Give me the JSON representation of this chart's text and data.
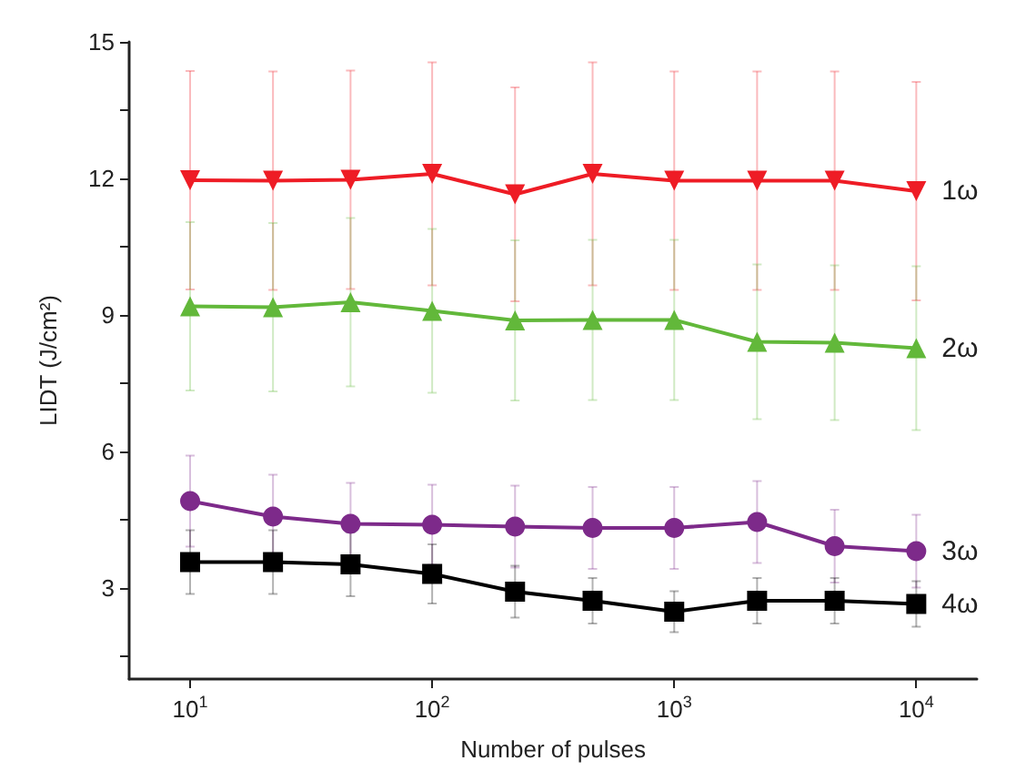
{
  "chart_data": {
    "type": "line",
    "xlabel": "Number of pulses",
    "ylabel": "LIDT (J/cm²)",
    "log": "x",
    "x": [
      10,
      22,
      46,
      100,
      220,
      460,
      1000,
      2200,
      4600,
      10000
    ],
    "xlim": [
      5.6,
      17800
    ],
    "xticks": [
      {
        "value": 10,
        "label": "10$^{1}$"
      },
      {
        "value": 100,
        "label": "10$^{2}$"
      },
      {
        "value": 1000,
        "label": "10$^{3}$"
      },
      {
        "value": 10000,
        "label": "10$^{4}$"
      }
    ],
    "ylim": [
      1,
      15
    ],
    "yticks": [
      {
        "value": 1.5,
        "label": null
      },
      3,
      {
        "value": 4.5,
        "label": null
      },
      6,
      {
        "value": 7.5,
        "label": null
      },
      9,
      {
        "value": 10.5,
        "label": null
      },
      12,
      {
        "value": 13.5,
        "label": null
      },
      15
    ],
    "grid": false,
    "legend": false,
    "line_style": "solid",
    "series": [
      {
        "name": "1ω",
        "color": "#ee1c25",
        "marker": "triangle-down",
        "values": [
          11.96,
          11.95,
          11.97,
          12.1,
          11.65,
          12.1,
          11.95,
          11.95,
          11.95,
          11.72
        ],
        "errors": [
          2.4,
          2.4,
          2.4,
          2.45,
          2.35,
          2.45,
          2.4,
          2.4,
          2.4,
          2.4
        ]
      },
      {
        "name": "2ω",
        "color": "#62b83a",
        "marker": "triangle",
        "values": [
          9.19,
          9.17,
          9.28,
          9.09,
          8.88,
          8.89,
          8.89,
          8.41,
          8.39,
          8.27
        ],
        "errors": [
          1.85,
          1.85,
          1.85,
          1.8,
          1.76,
          1.76,
          1.76,
          1.7,
          1.7,
          1.8
        ]
      },
      {
        "name": "3ω",
        "color": "#7d2a8a",
        "marker": "circle",
        "values": [
          4.91,
          4.57,
          4.41,
          4.39,
          4.35,
          4.32,
          4.32,
          4.45,
          3.92,
          3.81
        ],
        "errors": [
          1.0,
          0.92,
          0.9,
          0.88,
          0.9,
          0.9,
          0.9,
          0.9,
          0.8,
          0.8
        ]
      },
      {
        "name": "4ω",
        "color": "#000000",
        "marker": "square",
        "values": [
          3.57,
          3.57,
          3.52,
          3.31,
          2.92,
          2.72,
          2.48,
          2.72,
          2.72,
          2.65
        ],
        "errors": [
          0.7,
          0.7,
          0.7,
          0.65,
          0.57,
          0.5,
          0.45,
          0.5,
          0.5,
          0.5
        ]
      }
    ]
  }
}
